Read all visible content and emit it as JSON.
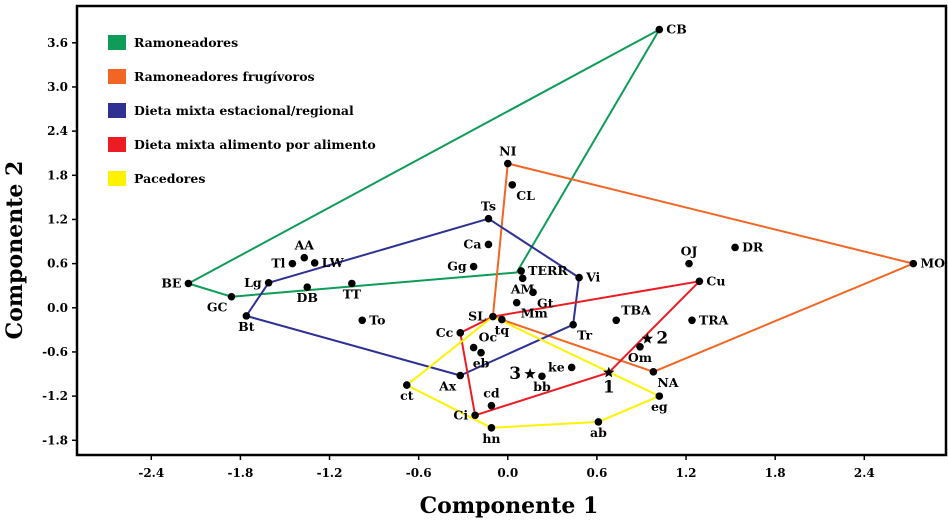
{
  "chart_data": {
    "type": "scatter",
    "title": "",
    "xlabel": "Componente 1",
    "ylabel": "Componente 2",
    "xlim": [
      -2.9,
      2.95
    ],
    "ylim": [
      -2.0,
      4.1
    ],
    "xticks": [
      -2.4,
      -1.8,
      -1.2,
      -0.6,
      0.0,
      0.6,
      1.2,
      1.8,
      2.4
    ],
    "yticks": [
      -1.8,
      -1.2,
      -0.6,
      0.0,
      0.6,
      1.2,
      1.8,
      2.4,
      3.0,
      3.6
    ],
    "xtick_labels": [
      "-2.4",
      "-1.8",
      "-1.2",
      "-0.6",
      "0.0",
      "0.6",
      "1.2",
      "1.8",
      "2.4"
    ],
    "ytick_labels": [
      "-1.8",
      "-1.2",
      "-0.6",
      "0.0",
      "0.6",
      "1.2",
      "1.8",
      "2.4",
      "3.0",
      "3.6"
    ],
    "legend": [
      {
        "label": "Ramoneadores",
        "color": "#0e9c58"
      },
      {
        "label": "Ramoneadores frugívoros",
        "color": "#f26522"
      },
      {
        "label": "Dieta mixta estacional/regional",
        "color": "#2e3192"
      },
      {
        "label": "Dieta mixta alimento por alimento",
        "color": "#ed1c24"
      },
      {
        "label": "Pacedores",
        "color": "#fff200"
      }
    ],
    "points": [
      {
        "label": "CB",
        "x": 1.02,
        "y": 3.78,
        "pos": "right"
      },
      {
        "label": "NI",
        "x": 0.0,
        "y": 1.96,
        "pos": "above"
      },
      {
        "label": "CL",
        "x": 0.03,
        "y": 1.67,
        "pos": "belowright"
      },
      {
        "label": "Ts",
        "x": -0.13,
        "y": 1.21,
        "pos": "above"
      },
      {
        "label": "Ca",
        "x": -0.13,
        "y": 0.86,
        "pos": "left"
      },
      {
        "label": "Gg",
        "x": -0.23,
        "y": 0.56,
        "pos": "left"
      },
      {
        "label": "TERR",
        "x": 0.09,
        "y": 0.5,
        "pos": "right"
      },
      {
        "label": "Vi",
        "x": 0.48,
        "y": 0.41,
        "pos": "right"
      },
      {
        "label": "AM",
        "x": 0.1,
        "y": 0.4,
        "pos": "below"
      },
      {
        "label": "Gt",
        "x": 0.17,
        "y": 0.21,
        "pos": "belowright"
      },
      {
        "label": "Mm",
        "x": 0.06,
        "y": 0.07,
        "pos": "belowright"
      },
      {
        "label": "SL",
        "x": -0.1,
        "y": -0.12,
        "pos": "left"
      },
      {
        "label": "tq",
        "x": -0.04,
        "y": -0.16,
        "pos": "below"
      },
      {
        "label": "Tr",
        "x": 0.44,
        "y": -0.23,
        "pos": "belowright"
      },
      {
        "label": "Cc",
        "x": -0.32,
        "y": -0.34,
        "pos": "left"
      },
      {
        "label": "Oc",
        "x": -0.23,
        "y": -0.54,
        "pos": "aboveright"
      },
      {
        "label": "eb",
        "x": -0.18,
        "y": -0.61,
        "pos": "below"
      },
      {
        "label": "ke",
        "x": 0.43,
        "y": -0.81,
        "pos": "left"
      },
      {
        "label": "bb",
        "x": 0.23,
        "y": -0.93,
        "pos": "below"
      },
      {
        "label": "Ax",
        "x": -0.32,
        "y": -0.92,
        "pos": "belowleft"
      },
      {
        "label": "cd",
        "x": -0.11,
        "y": -1.33,
        "pos": "above"
      },
      {
        "label": "Ci",
        "x": -0.22,
        "y": -1.46,
        "pos": "left"
      },
      {
        "label": "hn",
        "x": -0.11,
        "y": -1.63,
        "pos": "below"
      },
      {
        "label": "ab",
        "x": 0.61,
        "y": -1.55,
        "pos": "below"
      },
      {
        "label": "ct",
        "x": -0.68,
        "y": -1.05,
        "pos": "below"
      },
      {
        "label": "eg",
        "x": 1.02,
        "y": -1.2,
        "pos": "below"
      },
      {
        "label": "NA",
        "x": 0.98,
        "y": -0.87,
        "pos": "belowright"
      },
      {
        "label": "Om",
        "x": 0.89,
        "y": -0.53,
        "pos": "below"
      },
      {
        "label": "TBA",
        "x": 0.73,
        "y": -0.17,
        "pos": "aboveright"
      },
      {
        "label": "TRA",
        "x": 1.24,
        "y": -0.17,
        "pos": "right"
      },
      {
        "label": "OJ",
        "x": 1.22,
        "y": 0.6,
        "pos": "above"
      },
      {
        "label": "DR",
        "x": 1.53,
        "y": 0.82,
        "pos": "right"
      },
      {
        "label": "Cu",
        "x": 1.29,
        "y": 0.36,
        "pos": "right"
      },
      {
        "label": "MO",
        "x": 2.73,
        "y": 0.6,
        "pos": "right"
      },
      {
        "label": "BE",
        "x": -2.15,
        "y": 0.33,
        "pos": "left"
      },
      {
        "label": "GC",
        "x": -1.86,
        "y": 0.15,
        "pos": "belowleft"
      },
      {
        "label": "Lg",
        "x": -1.61,
        "y": 0.34,
        "pos": "left"
      },
      {
        "label": "Bt",
        "x": -1.76,
        "y": -0.11,
        "pos": "below"
      },
      {
        "label": "Tl",
        "x": -1.45,
        "y": 0.6,
        "pos": "left"
      },
      {
        "label": "AA",
        "x": -1.37,
        "y": 0.68,
        "pos": "above"
      },
      {
        "label": "LW",
        "x": -1.3,
        "y": 0.61,
        "pos": "right"
      },
      {
        "label": "DB",
        "x": -1.35,
        "y": 0.28,
        "pos": "below"
      },
      {
        "label": "TT",
        "x": -1.05,
        "y": 0.33,
        "pos": "below"
      },
      {
        "label": "To",
        "x": -0.98,
        "y": -0.17,
        "pos": "right"
      }
    ],
    "stars": [
      {
        "label": "1",
        "x": 0.68,
        "y": -0.88,
        "pos": "below"
      },
      {
        "label": "2",
        "x": 0.94,
        "y": -0.42,
        "pos": "right"
      },
      {
        "label": "3",
        "x": 0.15,
        "y": -0.9,
        "pos": "left"
      }
    ],
    "hulls": [
      {
        "group": "Ramoneadores",
        "color": "#0e9c58",
        "x": [
          1.02,
          0.06,
          -1.86,
          -2.15
        ],
        "y": [
          3.78,
          0.48,
          0.15,
          0.33
        ]
      },
      {
        "group": "Ramoneadores frugívoros",
        "color": "#f26522",
        "x": [
          0.0,
          2.73,
          0.98,
          -0.1
        ],
        "y": [
          1.96,
          0.6,
          -0.87,
          -0.12
        ]
      },
      {
        "group": "Dieta mixta estacional/regional",
        "color": "#2e3192",
        "x": [
          -0.13,
          0.48,
          0.44,
          -0.32,
          -1.76,
          -1.61
        ],
        "y": [
          1.21,
          0.41,
          -0.23,
          -0.92,
          -0.11,
          0.34
        ]
      },
      {
        "group": "Dieta mixta alimento por alimento",
        "color": "#ed1c24",
        "x": [
          1.29,
          0.68,
          -0.22,
          -0.32,
          -0.1
        ],
        "y": [
          0.36,
          -0.88,
          -1.46,
          -0.34,
          -0.12
        ]
      },
      {
        "group": "Pacedores",
        "color": "#fff200",
        "x": [
          -0.1,
          1.02,
          0.61,
          -0.11,
          -0.68
        ],
        "y": [
          -0.12,
          -1.2,
          -1.55,
          -1.63,
          -1.05
        ]
      }
    ]
  }
}
